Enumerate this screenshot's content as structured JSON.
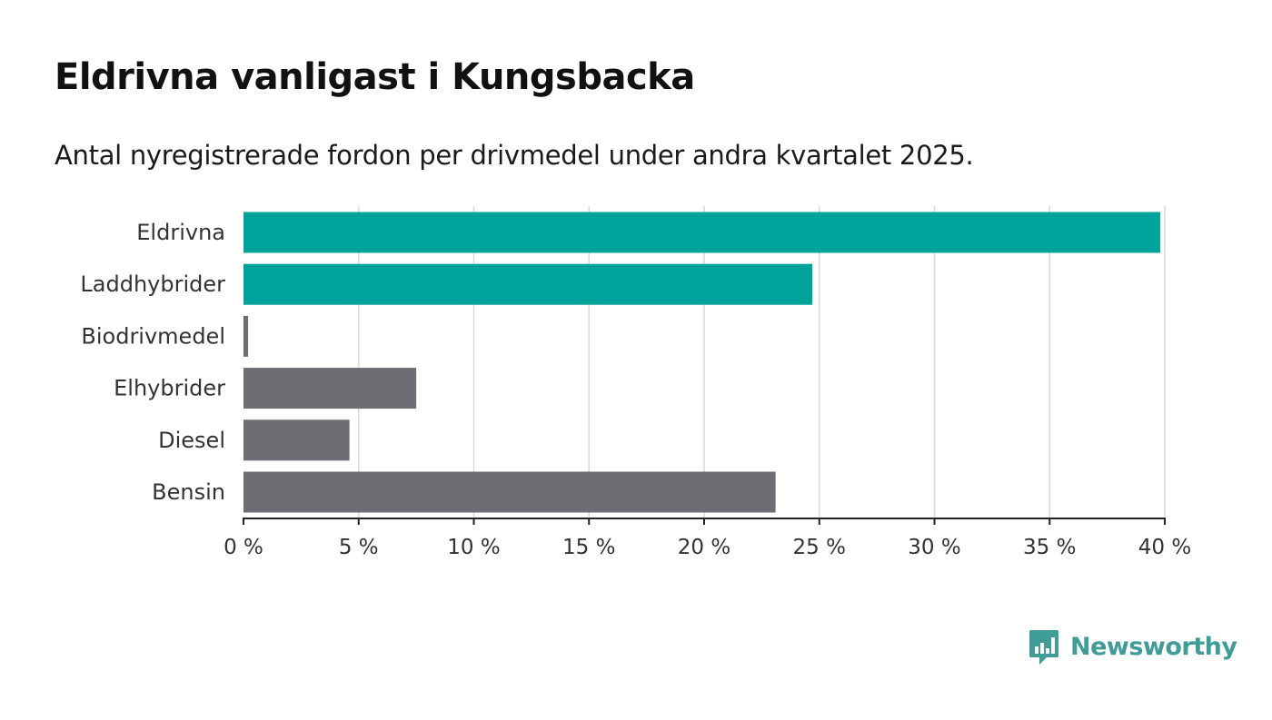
{
  "title": "Eldrivna vanligast i Kungsbacka",
  "subtitle": "Antal nyregistrerade fordon per drivmedel under andra kvartalet 2025.",
  "brand": {
    "name": "Newsworthy",
    "icon": "newsworthy-logo-icon",
    "color": "#3f9c97"
  },
  "colors": {
    "highlight": "#00a39a",
    "other": "#6e6d73",
    "grid": "#d9d9d9",
    "axis": "#222222"
  },
  "chart_data": {
    "type": "bar",
    "orientation": "horizontal",
    "categories": [
      "Eldrivna",
      "Laddhybrider",
      "Biodrivmedel",
      "Elhybrider",
      "Diesel",
      "Bensin"
    ],
    "values": [
      39.8,
      24.7,
      0.2,
      7.5,
      4.6,
      23.1
    ],
    "highlighted": [
      true,
      true,
      false,
      false,
      false,
      false
    ],
    "xlim": [
      0,
      40
    ],
    "x_ticks": [
      0,
      5,
      10,
      15,
      20,
      25,
      30,
      35,
      40
    ],
    "x_tick_labels": [
      "0 %",
      "5 %",
      "10 %",
      "15 %",
      "20 %",
      "25 %",
      "30 %",
      "35 %",
      "40 %"
    ],
    "grid": true
  }
}
